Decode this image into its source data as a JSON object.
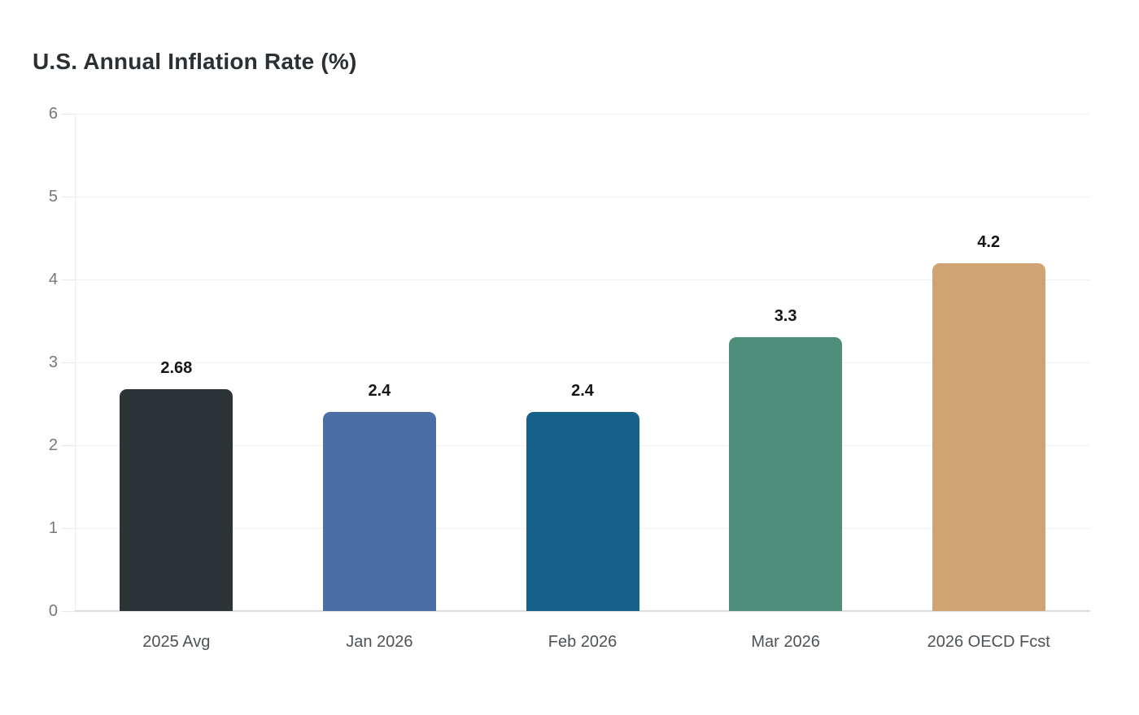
{
  "title": "U.S. Annual Inflation Rate (%)",
  "chart_data": {
    "type": "bar",
    "title": "U.S. Annual Inflation Rate (%)",
    "categories": [
      "2025 Avg",
      "Jan 2026",
      "Feb 2026",
      "Mar 2026",
      "2026 OECD Fcst"
    ],
    "values": [
      2.68,
      2.4,
      2.4,
      3.3,
      4.2
    ],
    "data_labels": [
      "2.68",
      "2.4",
      "2.4",
      "3.3",
      "4.2"
    ],
    "bar_colors": [
      "#2c3437",
      "#4b6ea6",
      "#16608c",
      "#4e8e7b",
      "#d2a372"
    ],
    "xlabel": "",
    "ylabel": "",
    "ylim": [
      0,
      6
    ],
    "yticks": [
      0,
      1,
      2,
      3,
      4,
      5,
      6
    ],
    "grid": true,
    "legend": false,
    "background": "#ffffff"
  },
  "colors": {
    "title_text": "#2a3033",
    "y_label_text": "#74787c",
    "x_label_text": "#4d5256",
    "data_label_text": "#141719",
    "gridline": "#f1f1f3",
    "axis_line": "#dcdce0"
  }
}
